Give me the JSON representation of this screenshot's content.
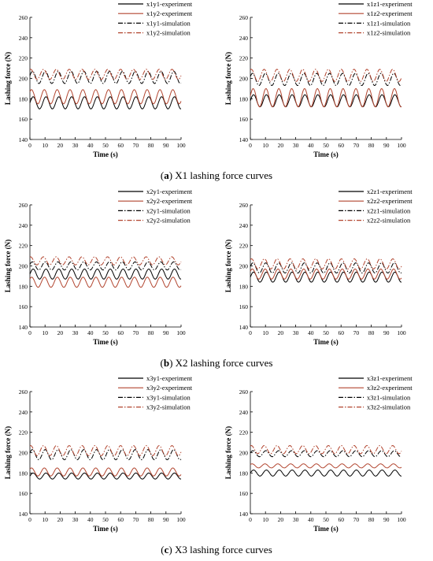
{
  "colors": {
    "black": "#000000",
    "red": "#b2452f",
    "axis": "#000000"
  },
  "captions": [
    {
      "letter": "a",
      "text": " X1 lashing force curves"
    },
    {
      "letter": "b",
      "text": " X2 lashing force curves"
    },
    {
      "letter": "c",
      "text": " X3 lashing force curves"
    }
  ],
  "chart_data": [
    {
      "type": "line",
      "xlabel": "Time (s)",
      "ylabel": "Lashing force (N)",
      "xlim": [
        0,
        100
      ],
      "ylim": [
        140,
        260
      ],
      "xticks": [
        0,
        10,
        20,
        30,
        40,
        50,
        60,
        70,
        80,
        90,
        100
      ],
      "yticks": [
        140,
        160,
        180,
        200,
        220,
        240,
        260
      ],
      "legend_position": "top-right",
      "series": [
        {
          "name": "x1y1-experiment",
          "style": "solid",
          "color": "black",
          "mean": 176,
          "amp": 6,
          "period": 8.5,
          "phase": 0.0
        },
        {
          "name": "x1y2-experiment",
          "style": "solid",
          "color": "red",
          "mean": 182,
          "amp": 7,
          "period": 8.5,
          "phase": 0.8
        },
        {
          "name": "x1y1-simulation",
          "style": "dashdot",
          "color": "black",
          "mean": 201,
          "amp": 6,
          "period": 8.5,
          "phase": 0.3
        },
        {
          "name": "x1y2-simulation",
          "style": "dashdot",
          "color": "red",
          "mean": 204,
          "amp": 5,
          "period": 8.5,
          "phase": 1.2
        }
      ]
    },
    {
      "type": "line",
      "xlabel": "Time (s)",
      "ylabel": "Lashing force (N)",
      "xlim": [
        0,
        100
      ],
      "ylim": [
        140,
        260
      ],
      "xticks": [
        0,
        10,
        20,
        30,
        40,
        50,
        60,
        70,
        80,
        90,
        100
      ],
      "yticks": [
        140,
        160,
        180,
        200,
        220,
        240,
        260
      ],
      "legend_position": "top-right",
      "series": [
        {
          "name": "x1z1-experiment",
          "style": "solid",
          "color": "black",
          "mean": 178,
          "amp": 6,
          "period": 8.5,
          "phase": 0.0
        },
        {
          "name": "x1z2-experiment",
          "style": "solid",
          "color": "red",
          "mean": 181,
          "amp": 9,
          "period": 8.5,
          "phase": 0.2
        },
        {
          "name": "x1z1-simulation",
          "style": "dashdot",
          "color": "black",
          "mean": 199,
          "amp": 6,
          "period": 8.5,
          "phase": 0.5
        },
        {
          "name": "x1z2-simulation",
          "style": "dashdot",
          "color": "red",
          "mean": 203,
          "amp": 6,
          "period": 8.5,
          "phase": 1.1
        }
      ]
    },
    {
      "type": "line",
      "xlabel": "Time (s)",
      "ylabel": "Lashing force (N)",
      "xlim": [
        0,
        100
      ],
      "ylim": [
        140,
        260
      ],
      "xticks": [
        0,
        10,
        20,
        30,
        40,
        50,
        60,
        70,
        80,
        90,
        100
      ],
      "yticks": [
        140,
        160,
        180,
        200,
        220,
        240,
        260
      ],
      "legend_position": "top-right",
      "series": [
        {
          "name": "x2y1-experiment",
          "style": "solid",
          "color": "black",
          "mean": 192,
          "amp": 5,
          "period": 8.5,
          "phase": 0.0
        },
        {
          "name": "x2y2-experiment",
          "style": "solid",
          "color": "red",
          "mean": 184,
          "amp": 5,
          "period": 8.5,
          "phase": 0.7
        },
        {
          "name": "x2y1-simulation",
          "style": "dashdot",
          "color": "black",
          "mean": 200,
          "amp": 4,
          "period": 8.5,
          "phase": 0.4
        },
        {
          "name": "x2y2-simulation",
          "style": "dashdot",
          "color": "red",
          "mean": 205,
          "amp": 4,
          "period": 8.5,
          "phase": 1.3
        }
      ]
    },
    {
      "type": "line",
      "xlabel": "Time (s)",
      "ylabel": "Lashing force (N)",
      "xlim": [
        0,
        100
      ],
      "ylim": [
        140,
        260
      ],
      "xticks": [
        0,
        10,
        20,
        30,
        40,
        50,
        60,
        70,
        80,
        90,
        100
      ],
      "yticks": [
        140,
        160,
        180,
        200,
        220,
        240,
        260
      ],
      "legend_position": "top-right",
      "series": [
        {
          "name": "x2z1-experiment",
          "style": "solid",
          "color": "black",
          "mean": 189,
          "amp": 5,
          "period": 8.5,
          "phase": 0.0
        },
        {
          "name": "x2z2-experiment",
          "style": "solid",
          "color": "red",
          "mean": 192,
          "amp": 5,
          "period": 8.5,
          "phase": 0.6
        },
        {
          "name": "x2z1-simulation",
          "style": "dashdot",
          "color": "black",
          "mean": 198,
          "amp": 5,
          "period": 8.5,
          "phase": 0.3
        },
        {
          "name": "x2z2-simulation",
          "style": "dashdot",
          "color": "red",
          "mean": 202,
          "amp": 5,
          "period": 8.5,
          "phase": 1.0
        }
      ]
    },
    {
      "type": "line",
      "xlabel": "Time (s)",
      "ylabel": "Lashing force (N)",
      "xlim": [
        0,
        100
      ],
      "ylim": [
        140,
        260
      ],
      "xticks": [
        0,
        10,
        20,
        30,
        40,
        50,
        60,
        70,
        80,
        90,
        100
      ],
      "yticks": [
        140,
        160,
        180,
        200,
        220,
        240,
        260
      ],
      "legend_position": "top-right",
      "series": [
        {
          "name": "x3y1-experiment",
          "style": "solid",
          "color": "black",
          "mean": 177,
          "amp": 3,
          "period": 8.5,
          "phase": 0.0
        },
        {
          "name": "x3y2-experiment",
          "style": "solid",
          "color": "red",
          "mean": 181,
          "amp": 4,
          "period": 8.5,
          "phase": 0.8
        },
        {
          "name": "x3y1-simulation",
          "style": "dashdot",
          "color": "black",
          "mean": 198,
          "amp": 5,
          "period": 8.5,
          "phase": 0.4
        },
        {
          "name": "x3y2-simulation",
          "style": "dashdot",
          "color": "red",
          "mean": 202,
          "amp": 5,
          "period": 8.5,
          "phase": 1.2
        }
      ]
    },
    {
      "type": "line",
      "xlabel": "Time (s)",
      "ylabel": "Lashing force (N)",
      "xlim": [
        0,
        100
      ],
      "ylim": [
        140,
        260
      ],
      "xticks": [
        0,
        10,
        20,
        30,
        40,
        50,
        60,
        70,
        80,
        90,
        100
      ],
      "yticks": [
        140,
        160,
        180,
        200,
        220,
        240,
        260
      ],
      "legend_position": "top-right",
      "series": [
        {
          "name": "x3z1-experiment",
          "style": "solid",
          "color": "black",
          "mean": 180,
          "amp": 3,
          "period": 8.5,
          "phase": 0.0
        },
        {
          "name": "x3z2-experiment",
          "style": "solid",
          "color": "red",
          "mean": 187,
          "amp": 2,
          "period": 8.5,
          "phase": 0.7
        },
        {
          "name": "x3z1-simulation",
          "style": "dashdot",
          "color": "black",
          "mean": 199,
          "amp": 3,
          "period": 8.5,
          "phase": 0.3
        },
        {
          "name": "x3z2-simulation",
          "style": "dashdot",
          "color": "red",
          "mean": 203,
          "amp": 4,
          "period": 8.5,
          "phase": 1.1
        }
      ]
    }
  ]
}
